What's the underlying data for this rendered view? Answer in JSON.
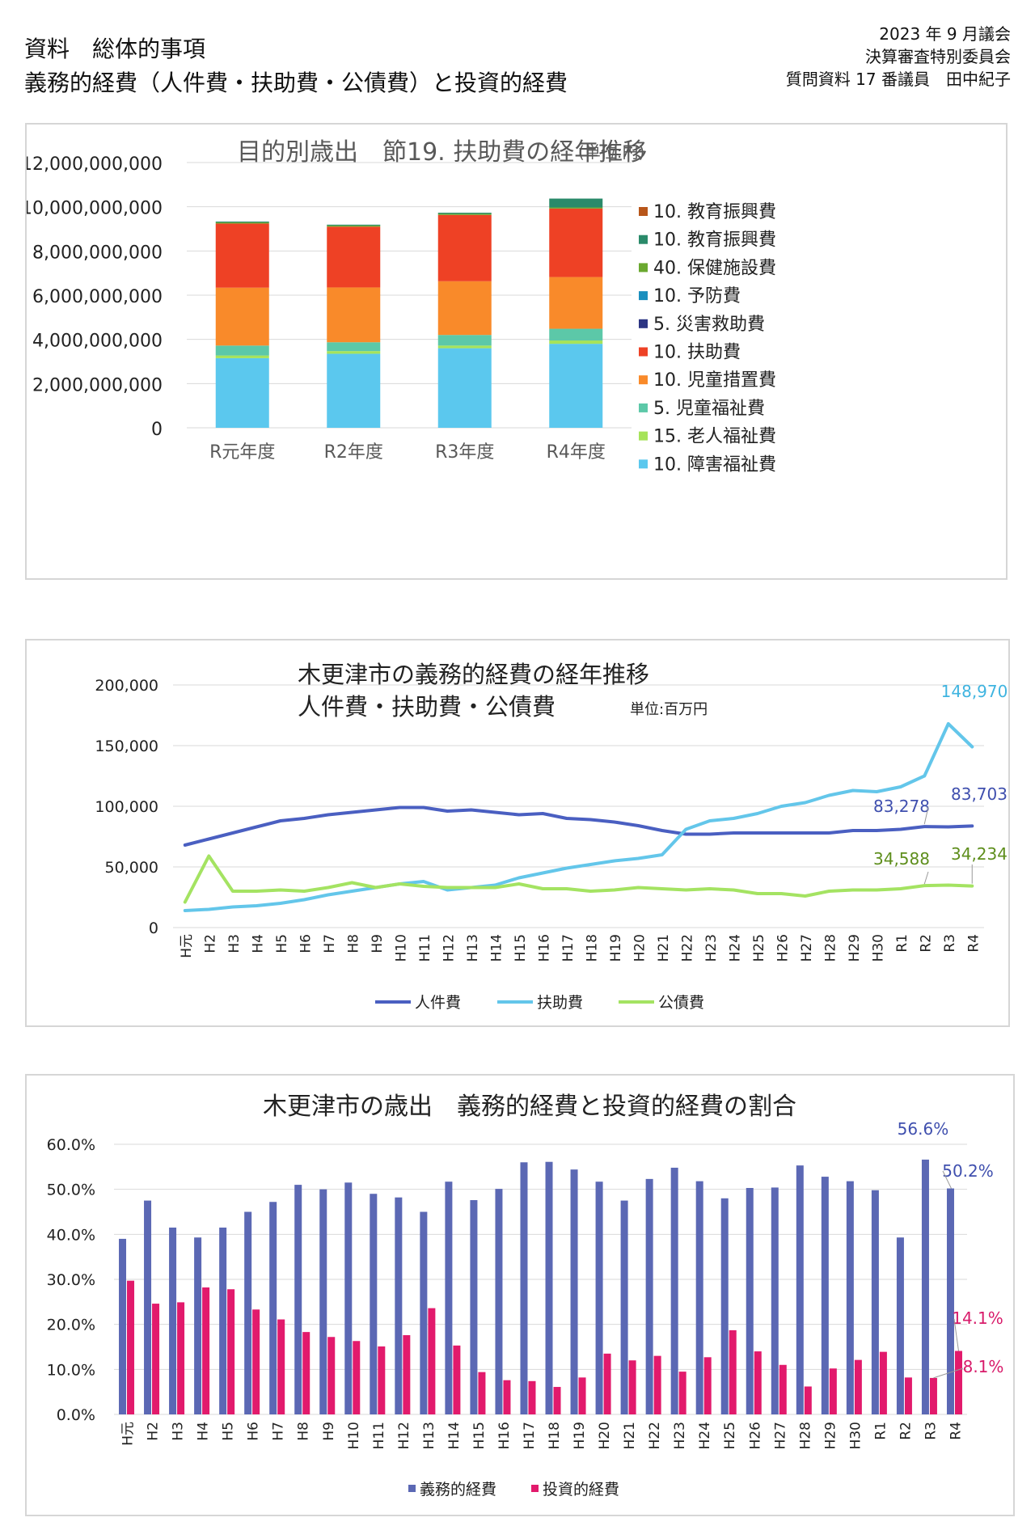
{
  "header": {
    "left_line1": "資料　総体的事項",
    "left_line2": "義務的経費（人件費・扶助費・公債費）と投資的経費",
    "right_line1": "2023 年 9 月議会",
    "right_line2": "決算審査特別委員会",
    "right_line3": "質問資料 17 番議員　田中紀子"
  },
  "chart_data": [
    {
      "type": "bar",
      "stacked": true,
      "title": "目的別歳出　節19. 扶助費の経年推移",
      "unit": "(単位:円)",
      "categories": [
        "R元年度",
        "R2年度",
        "R3年度",
        "R4年度"
      ],
      "ylim": [
        0,
        12000000000
      ],
      "yticks": [
        "0",
        "2,000,000,000",
        "4,000,000,000",
        "6,000,000,000",
        "8,000,000,000",
        "10,000,000,000",
        "12,000,000,000"
      ],
      "grid": true,
      "legend_position": "right",
      "series": [
        {
          "name": "10. 障害福祉費",
          "color": "#5bc8ee",
          "values": [
            3150000000,
            3350000000,
            3600000000,
            3800000000
          ]
        },
        {
          "name": "15. 老人福祉費",
          "color": "#a6e35a",
          "values": [
            120000000,
            120000000,
            120000000,
            150000000
          ]
        },
        {
          "name": "5. 児童福祉費",
          "color": "#5cc8a8",
          "values": [
            450000000,
            400000000,
            480000000,
            530000000
          ]
        },
        {
          "name": "10. 児童措置費",
          "color": "#f98a2a",
          "values": [
            2620000000,
            2480000000,
            2430000000,
            2340000000
          ]
        },
        {
          "name": "10. 扶助費",
          "color": "#ee4125",
          "values": [
            2900000000,
            2750000000,
            3000000000,
            3100000000
          ]
        },
        {
          "name": "5. 災害救助費",
          "color": "#2c3583",
          "values": [
            0,
            0,
            0,
            0
          ]
        },
        {
          "name": "10. 予防費",
          "color": "#1b8fbe",
          "values": [
            0,
            0,
            0,
            0
          ]
        },
        {
          "name": "40. 保健施設費",
          "color": "#6aa82f",
          "values": [
            50000000,
            50000000,
            50000000,
            50000000
          ]
        },
        {
          "name": "10. 教育振興費",
          "color": "#2a8a6a",
          "values": [
            40000000,
            40000000,
            50000000,
            400000000
          ]
        },
        {
          "name": "10. 教育振興費",
          "color": "#b8561a",
          "values": [
            0,
            0,
            0,
            0
          ]
        }
      ]
    },
    {
      "type": "line",
      "title_line1": "木更津市の義務的経費の経年推移",
      "title_line2": "人件費・扶助費・公債費",
      "unit": "単位:百万円",
      "x": [
        "H元",
        "H2",
        "H3",
        "H4",
        "H5",
        "H6",
        "H7",
        "H8",
        "H9",
        "H10",
        "H11",
        "H12",
        "H13",
        "H14",
        "H15",
        "H16",
        "H17",
        "H18",
        "H19",
        "H20",
        "H21",
        "H22",
        "H23",
        "H24",
        "H25",
        "H26",
        "H27",
        "H28",
        "H29",
        "H30",
        "R1",
        "R2",
        "R3",
        "R4"
      ],
      "ylim": [
        0,
        200000
      ],
      "yticks": [
        "0",
        "50,000",
        "100,000",
        "150,000",
        "200,000"
      ],
      "legend_position": "bottom",
      "series": [
        {
          "name": "人件費",
          "color": "#4a5fc1",
          "values": [
            68000,
            73000,
            78000,
            83000,
            88000,
            90000,
            93000,
            95000,
            97000,
            99000,
            99000,
            96000,
            97000,
            95000,
            93000,
            94000,
            90000,
            89000,
            87000,
            84000,
            80000,
            77000,
            77000,
            78000,
            78000,
            78000,
            78000,
            78000,
            80000,
            80000,
            81000,
            83278,
            83000,
            83703
          ]
        },
        {
          "name": "扶助費",
          "color": "#63c6ea",
          "values": [
            14000,
            15000,
            17000,
            18000,
            20000,
            23000,
            27000,
            30000,
            33000,
            36000,
            38000,
            31000,
            33000,
            35000,
            41000,
            45000,
            49000,
            52000,
            55000,
            57000,
            60000,
            81000,
            88000,
            90000,
            94000,
            100000,
            103000,
            109000,
            113000,
            112000,
            116000,
            125000,
            168000,
            148970
          ]
        },
        {
          "name": "公債費",
          "color": "#a4e362",
          "values": [
            21000,
            59000,
            30000,
            30000,
            31000,
            30000,
            33000,
            37000,
            33000,
            36000,
            34000,
            33000,
            33000,
            33000,
            36000,
            32000,
            32000,
            30000,
            31000,
            33000,
            32000,
            31000,
            32000,
            31000,
            28000,
            28000,
            26000,
            30000,
            31000,
            31000,
            32000,
            34588,
            35000,
            34234
          ]
        }
      ],
      "annotations": [
        {
          "text": "148,970",
          "color": "#3fb4e0"
        },
        {
          "text": "83,278",
          "color": "#3f4fae"
        },
        {
          "text": "83,703",
          "color": "#3f4fae"
        },
        {
          "text": "34,588",
          "color": "#5e8e1c"
        },
        {
          "text": "34,234",
          "color": "#5e8e1c"
        }
      ]
    },
    {
      "type": "bar",
      "title": "木更津市の歳出　義務的経費と投資的経費の割合",
      "x": [
        "H元",
        "H2",
        "H3",
        "H4",
        "H5",
        "H6",
        "H7",
        "H8",
        "H9",
        "H10",
        "H11",
        "H12",
        "H13",
        "H14",
        "H15",
        "H16",
        "H17",
        "H18",
        "H19",
        "H20",
        "H21",
        "H22",
        "H23",
        "H24",
        "H25",
        "H26",
        "H27",
        "H28",
        "H29",
        "H30",
        "R1",
        "R2",
        "R3",
        "R4"
      ],
      "ylim": [
        0,
        60
      ],
      "yticks": [
        "0.0%",
        "10.0%",
        "20.0%",
        "30.0%",
        "40.0%",
        "50.0%",
        "60.0%"
      ],
      "legend_position": "bottom",
      "series": [
        {
          "name": "義務的経費",
          "color": "#5b68b4",
          "values": [
            39,
            47.5,
            41.5,
            39.3,
            41.5,
            45,
            47.2,
            51,
            50,
            51.5,
            49,
            48.2,
            45,
            51.7,
            47.6,
            50.1,
            56,
            56.1,
            54.4,
            51.7,
            47.5,
            52.3,
            54.8,
            51.8,
            48,
            50.3,
            50.4,
            55.3,
            52.8,
            51.8,
            49.8,
            39.3,
            56.6,
            50.2
          ]
        },
        {
          "name": "投資的経費",
          "color": "#e21a6c",
          "values": [
            29.7,
            24.6,
            24.9,
            28.2,
            27.8,
            23.3,
            21.1,
            18.3,
            17.2,
            16.3,
            15.1,
            17.6,
            23.6,
            15.3,
            9.4,
            7.6,
            7.4,
            6.1,
            8.2,
            13.5,
            12,
            13,
            9.5,
            12.7,
            18.7,
            14,
            11,
            6.2,
            10.2,
            12.1,
            13.9,
            8.2,
            8.1,
            14.1
          ]
        }
      ],
      "annotations": [
        {
          "text": "56.6%",
          "color": "#3f4fae"
        },
        {
          "text": "50.2%",
          "color": "#3f4fae"
        },
        {
          "text": "14.1%",
          "color": "#d81b6a"
        },
        {
          "text": "8.1%",
          "color": "#d81b6a"
        }
      ]
    }
  ]
}
